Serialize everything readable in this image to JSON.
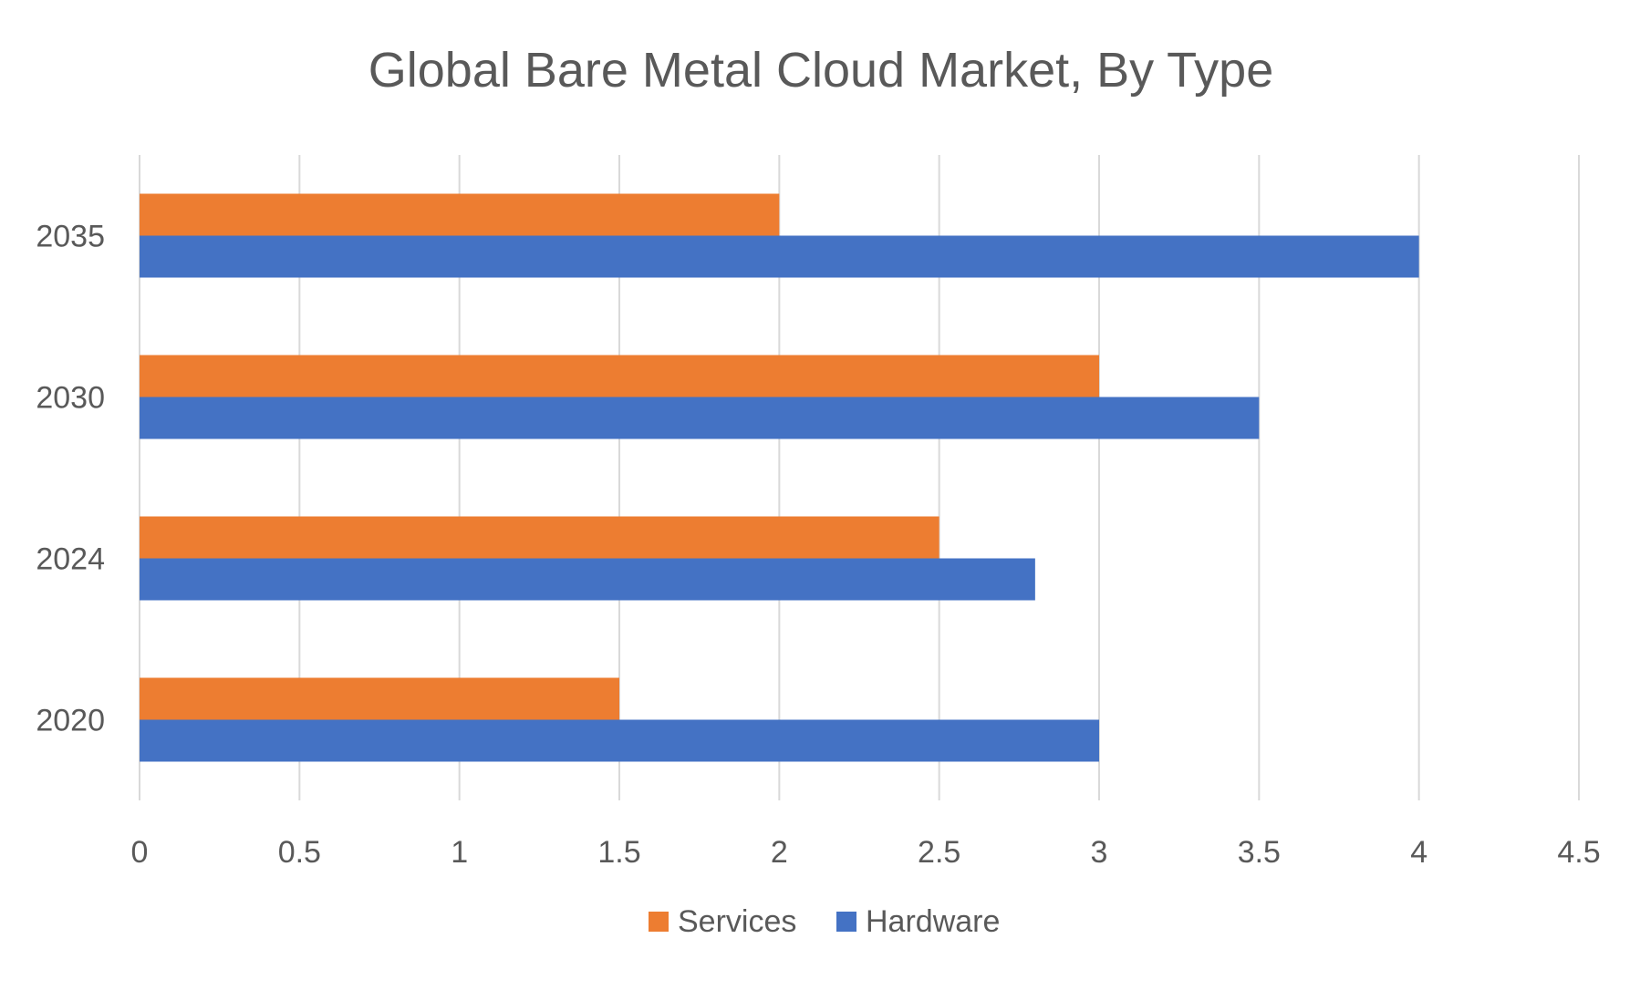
{
  "chart_data": {
    "type": "bar",
    "orientation": "horizontal",
    "title": "Global Bare Metal Cloud Market, By Type",
    "xlabel": "",
    "ylabel": "",
    "categories": [
      "2020",
      "2024",
      "2030",
      "2035"
    ],
    "series": [
      {
        "name": "Services",
        "color": "#ED7D31",
        "values": [
          1.5,
          2.5,
          3.0,
          2.0
        ]
      },
      {
        "name": "Hardware",
        "color": "#4472C4",
        "values": [
          3.0,
          2.8,
          3.5,
          4.0
        ]
      }
    ],
    "xlim": [
      0,
      4.5
    ],
    "x_ticks": [
      "0",
      "0.5",
      "1",
      "1.5",
      "2",
      "2.5",
      "3",
      "3.5",
      "4",
      "4.5"
    ],
    "grid": "vertical",
    "legend": "bottom"
  }
}
